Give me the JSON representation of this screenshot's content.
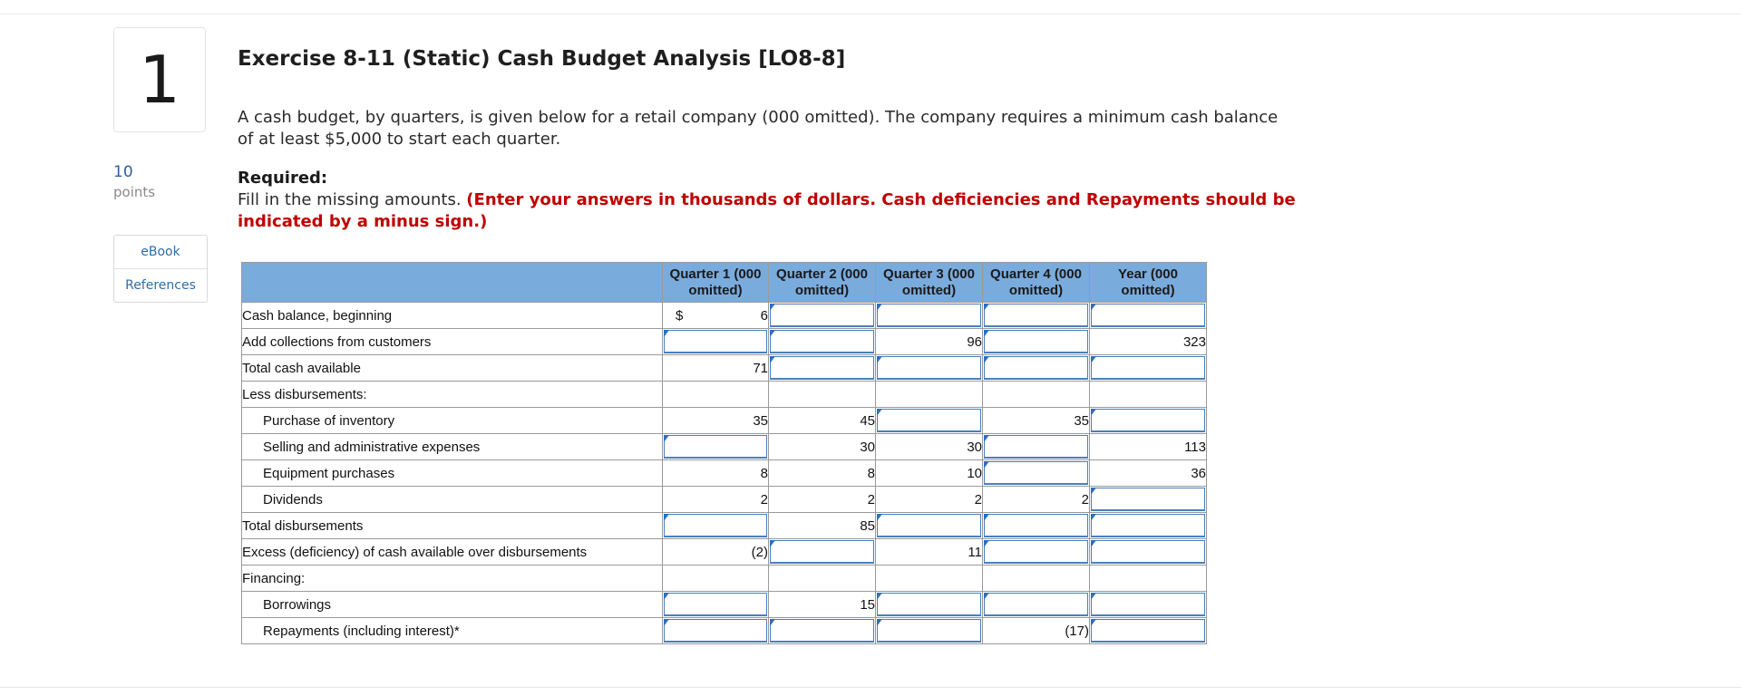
{
  "question": {
    "number": "1",
    "points": "10",
    "points_label": "points",
    "ebook": "eBook",
    "references": "References"
  },
  "exercise": {
    "title": "Exercise 8-11 (Static) Cash Budget Analysis [LO8-8]",
    "intro": "A cash budget, by quarters, is given below for a retail company (000 omitted). The company requires a minimum cash balance of at least $5,000 to start each quarter.",
    "required_heading": "Required:",
    "required_text": "Fill in the missing amounts.",
    "required_instruction": "(Enter your answers in thousands of dollars. Cash deficiencies and Repayments should be indicated by a minus sign.)"
  },
  "table": {
    "headers": [
      "",
      "Quarter 1 (000 omitted)",
      "Quarter 2 (000 omitted)",
      "Quarter 3 (000 omitted)",
      "Quarter 4 (000 omitted)",
      "Year (000 omitted)"
    ],
    "currency": "$",
    "rows": [
      {
        "label": "Cash balance, beginning",
        "cells": [
          "6",
          null,
          null,
          null,
          null
        ]
      },
      {
        "label": "Add collections from customers",
        "cells": [
          null,
          null,
          "96",
          null,
          "323"
        ]
      },
      {
        "label": "Total cash available",
        "cells": [
          "71",
          null,
          null,
          null,
          null
        ]
      },
      {
        "label": "Less disbursements:",
        "cells": [
          "",
          "",
          "",
          "",
          ""
        ]
      },
      {
        "label": "Purchase of inventory",
        "cells": [
          "35",
          "45",
          null,
          "35",
          null
        ]
      },
      {
        "label": "Selling and administrative expenses",
        "cells": [
          null,
          "30",
          "30",
          null,
          "113"
        ]
      },
      {
        "label": "Equipment purchases",
        "cells": [
          "8",
          "8",
          "10",
          null,
          "36"
        ]
      },
      {
        "label": "Dividends",
        "cells": [
          "2",
          "2",
          "2",
          "2",
          null
        ]
      },
      {
        "label": "Total disbursements",
        "cells": [
          null,
          "85",
          null,
          null,
          null
        ]
      },
      {
        "label": "Excess (deficiency) of cash available over disbursements",
        "cells": [
          "(2)",
          null,
          "11",
          null,
          null
        ]
      },
      {
        "label": "Financing:",
        "cells": [
          "",
          "",
          "",
          "",
          ""
        ]
      },
      {
        "label": "Borrowings",
        "cells": [
          null,
          "15",
          null,
          null,
          null
        ]
      },
      {
        "label": "Repayments (including interest)*",
        "cells": [
          null,
          null,
          null,
          "(17)",
          null
        ]
      }
    ]
  }
}
